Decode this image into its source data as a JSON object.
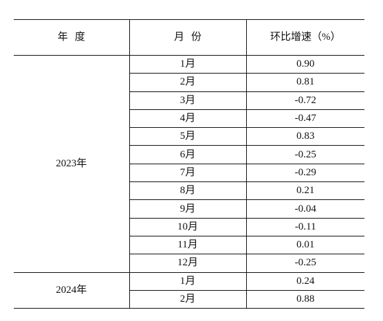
{
  "table": {
    "headers": {
      "year": "年度",
      "month": "月份",
      "rate": "环比增速（%）"
    },
    "groups": [
      {
        "year": "2023年",
        "rows": [
          {
            "month": "1月",
            "value": "0.90"
          },
          {
            "month": "2月",
            "value": "0.81"
          },
          {
            "month": "3月",
            "value": "-0.72"
          },
          {
            "month": "4月",
            "value": "-0.47"
          },
          {
            "month": "5月",
            "value": "0.83"
          },
          {
            "month": "6月",
            "value": "-0.25"
          },
          {
            "month": "7月",
            "value": "-0.29"
          },
          {
            "month": "8月",
            "value": "0.21"
          },
          {
            "month": "9月",
            "value": "-0.04"
          },
          {
            "month": "10月",
            "value": "-0.11"
          },
          {
            "month": "11月",
            "value": "0.01"
          },
          {
            "month": "12月",
            "value": "-0.25"
          }
        ]
      },
      {
        "year": "2024年",
        "rows": [
          {
            "month": "1月",
            "value": "0.24"
          },
          {
            "month": "2月",
            "value": "0.88"
          }
        ]
      }
    ]
  }
}
